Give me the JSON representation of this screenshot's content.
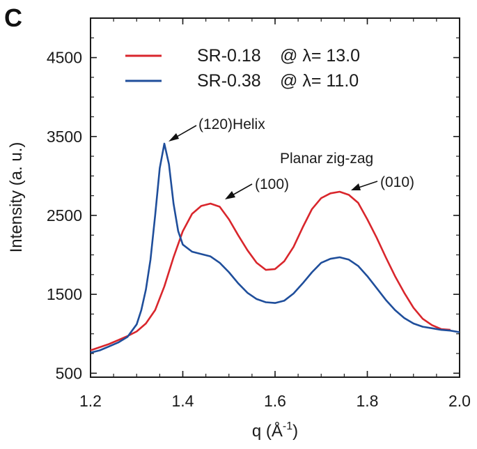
{
  "panel_label": "C",
  "chart_data": {
    "type": "line",
    "xlabel": "q (Å",
    "xlabel_sup": "-1",
    "xlabel_close": ")",
    "ylabel": "Intensity (a. u.)",
    "xlim": [
      1.2,
      2.0
    ],
    "ylim": [
      450,
      5000
    ],
    "xticks": [
      "1.2",
      "1.4",
      "1.6",
      "1.8",
      "2.0"
    ],
    "xtick_values": [
      1.2,
      1.4,
      1.6,
      1.8,
      2.0
    ],
    "yticks": [
      "500",
      "1500",
      "2500",
      "3500",
      "4500"
    ],
    "ytick_values": [
      500,
      1500,
      2500,
      3500,
      4500
    ],
    "grid": false,
    "legend_position": "top-left",
    "series": [
      {
        "name": "SR-0.18",
        "condition": "@ λ= 13.0",
        "color": "#d9262c",
        "points": [
          [
            1.2,
            790
          ],
          [
            1.22,
            830
          ],
          [
            1.24,
            870
          ],
          [
            1.26,
            920
          ],
          [
            1.28,
            970
          ],
          [
            1.3,
            1030
          ],
          [
            1.32,
            1130
          ],
          [
            1.34,
            1300
          ],
          [
            1.36,
            1600
          ],
          [
            1.38,
            1970
          ],
          [
            1.4,
            2300
          ],
          [
            1.42,
            2520
          ],
          [
            1.44,
            2620
          ],
          [
            1.46,
            2650
          ],
          [
            1.48,
            2610
          ],
          [
            1.5,
            2450
          ],
          [
            1.52,
            2250
          ],
          [
            1.54,
            2060
          ],
          [
            1.56,
            1900
          ],
          [
            1.58,
            1810
          ],
          [
            1.6,
            1820
          ],
          [
            1.62,
            1920
          ],
          [
            1.64,
            2100
          ],
          [
            1.66,
            2350
          ],
          [
            1.68,
            2580
          ],
          [
            1.7,
            2720
          ],
          [
            1.72,
            2780
          ],
          [
            1.74,
            2800
          ],
          [
            1.76,
            2760
          ],
          [
            1.78,
            2660
          ],
          [
            1.8,
            2450
          ],
          [
            1.82,
            2220
          ],
          [
            1.84,
            1970
          ],
          [
            1.86,
            1730
          ],
          [
            1.88,
            1520
          ],
          [
            1.9,
            1330
          ],
          [
            1.92,
            1190
          ],
          [
            1.94,
            1110
          ],
          [
            1.96,
            1060
          ],
          [
            1.98,
            1050
          ]
        ]
      },
      {
        "name": "SR-0.38",
        "condition": "@ λ= 11.0",
        "color": "#1f4e9b",
        "points": [
          [
            1.2,
            760
          ],
          [
            1.22,
            790
          ],
          [
            1.24,
            840
          ],
          [
            1.26,
            890
          ],
          [
            1.28,
            960
          ],
          [
            1.3,
            1120
          ],
          [
            1.31,
            1300
          ],
          [
            1.32,
            1560
          ],
          [
            1.33,
            1940
          ],
          [
            1.34,
            2500
          ],
          [
            1.35,
            3100
          ],
          [
            1.36,
            3410
          ],
          [
            1.37,
            3150
          ],
          [
            1.38,
            2650
          ],
          [
            1.39,
            2300
          ],
          [
            1.4,
            2130
          ],
          [
            1.42,
            2040
          ],
          [
            1.44,
            2010
          ],
          [
            1.46,
            1980
          ],
          [
            1.48,
            1900
          ],
          [
            1.5,
            1780
          ],
          [
            1.52,
            1640
          ],
          [
            1.54,
            1520
          ],
          [
            1.56,
            1440
          ],
          [
            1.58,
            1400
          ],
          [
            1.6,
            1390
          ],
          [
            1.62,
            1420
          ],
          [
            1.64,
            1510
          ],
          [
            1.66,
            1640
          ],
          [
            1.68,
            1780
          ],
          [
            1.7,
            1900
          ],
          [
            1.72,
            1950
          ],
          [
            1.74,
            1970
          ],
          [
            1.76,
            1940
          ],
          [
            1.78,
            1860
          ],
          [
            1.8,
            1730
          ],
          [
            1.82,
            1580
          ],
          [
            1.84,
            1430
          ],
          [
            1.86,
            1300
          ],
          [
            1.88,
            1200
          ],
          [
            1.9,
            1130
          ],
          [
            1.92,
            1090
          ],
          [
            1.94,
            1070
          ],
          [
            1.96,
            1050
          ],
          [
            1.98,
            1040
          ],
          [
            2.0,
            1020
          ]
        ]
      }
    ],
    "annotations": [
      {
        "label": "(120)Helix",
        "target": [
          1.36,
          3410
        ]
      },
      {
        "label": "Planar zig-zag"
      },
      {
        "label": "(100)",
        "target": [
          1.46,
          2650
        ]
      },
      {
        "label": "(010)",
        "target": [
          1.74,
          2800
        ]
      }
    ]
  }
}
